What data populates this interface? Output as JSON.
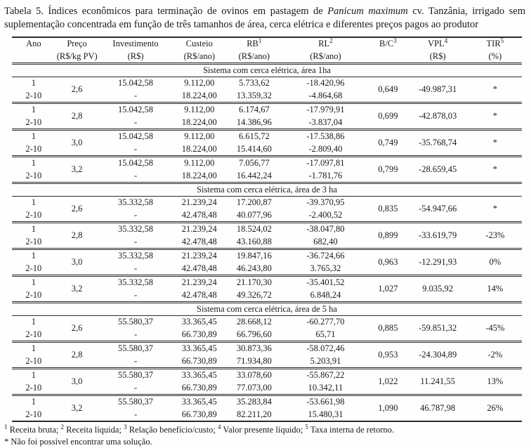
{
  "title": {
    "text_before_italic": "Tabela 5. Índices econômicos para terminação de ovinos em pastagem de ",
    "italic": "Panicum maximum",
    "text_after_italic": " cv. Tanzânia, irrigado sem suplementação concentrada em função de três tamanhos de área, cerca elétrica e diferentes preços pagos ao produtor"
  },
  "table": {
    "columns": [
      {
        "key": "ano",
        "label": "Ano",
        "sup": "",
        "unit": ""
      },
      {
        "key": "preco",
        "label": "Preço",
        "sup": "",
        "unit": "(R$/kg PV)"
      },
      {
        "key": "investimento",
        "label": "Investimento",
        "sup": "",
        "unit": "(R$)"
      },
      {
        "key": "custeio",
        "label": "Custeio",
        "sup": "",
        "unit": "(R$/ano)"
      },
      {
        "key": "rb",
        "label": "RB",
        "sup": "1",
        "unit": "(R$/ano)"
      },
      {
        "key": "rl",
        "label": "RL",
        "sup": "2",
        "unit": "(R$/ano)"
      },
      {
        "key": "bc",
        "label": "B/C",
        "sup": "3",
        "unit": ""
      },
      {
        "key": "vpl",
        "label": "VPL",
        "sup": "4",
        "unit": "(R$)"
      },
      {
        "key": "tir",
        "label": "TIR",
        "sup": "5",
        "unit": "(%)"
      }
    ],
    "col_widths": [
      "8.5%",
      "8.5%",
      "14.5%",
      "10.5%",
      "11%",
      "17%",
      "7.5%",
      "12%",
      "10.5%"
    ],
    "sections": [
      {
        "header": "Sistema com cerca elétrica, área 1ha",
        "rows": [
          {
            "ano": [
              "1",
              "2-10"
            ],
            "preco": "2,6",
            "investimento": [
              "15.042,58",
              "-"
            ],
            "custeio": [
              "9.112,00",
              "18.224,00"
            ],
            "rb": [
              "5.733,62",
              "13.359,32"
            ],
            "rl": [
              "-18.420,96",
              "-4.864,68"
            ],
            "bc": "0,649",
            "vpl": "-49.987,31",
            "tir": "*"
          },
          {
            "ano": [
              "1",
              "2-10"
            ],
            "preco": "2,8",
            "investimento": [
              "15.042,58",
              "-"
            ],
            "custeio": [
              "9.112,00",
              "18.224,00"
            ],
            "rb": [
              "6.174,67",
              "14.386,96"
            ],
            "rl": [
              "-17.979,91",
              "-3.837,04"
            ],
            "bc": "0,699",
            "vpl": "-42.878,03",
            "tir": "*"
          },
          {
            "ano": [
              "1",
              "2-10"
            ],
            "preco": "3,0",
            "investimento": [
              "15.042,58",
              "-"
            ],
            "custeio": [
              "9.112,00",
              "18.224,00"
            ],
            "rb": [
              "6.615,72",
              "15.414,60"
            ],
            "rl": [
              "-17.538,86",
              "-2.809,40"
            ],
            "bc": "0,749",
            "vpl": "-35.768,74",
            "tir": "*"
          },
          {
            "ano": [
              "1",
              "2-10"
            ],
            "preco": "3,2",
            "investimento": [
              "15.042,58",
              "-"
            ],
            "custeio": [
              "9.112,00",
              "18.224,00"
            ],
            "rb": [
              "7.056,77",
              "16.442,24"
            ],
            "rl": [
              "-17.097,81",
              "-1.781,76"
            ],
            "bc": "0,799",
            "vpl": "-28.659,45",
            "tir": "*"
          }
        ]
      },
      {
        "header": "Sistema com cerca elétrica, área de 3 ha",
        "rows": [
          {
            "ano": [
              "1",
              "2-10"
            ],
            "preco": "2,6",
            "investimento": [
              "35.332,58",
              "-"
            ],
            "custeio": [
              "21.239,24",
              "42.478,48"
            ],
            "rb": [
              "17.200,87",
              "40.077,96"
            ],
            "rl": [
              "-39.370,95",
              "-2.400,52"
            ],
            "bc": "0,835",
            "vpl": "-54.947,66",
            "tir": "*"
          },
          {
            "ano": [
              "1",
              "2-10"
            ],
            "preco": "2,8",
            "investimento": [
              "35.332,58",
              "-"
            ],
            "custeio": [
              "21.239,24",
              "42.478,48"
            ],
            "rb": [
              "18.524,02",
              "43.160,88"
            ],
            "rl": [
              "-38.047,80",
              "682,40"
            ],
            "bc": "0,899",
            "vpl": "-33.619,79",
            "tir": "-23%"
          },
          {
            "ano": [
              "1",
              "2-10"
            ],
            "preco": "3,0",
            "investimento": [
              "35.332,58",
              "-"
            ],
            "custeio": [
              "21.239,24",
              "42.478,48"
            ],
            "rb": [
              "19.847,16",
              "46.243,80"
            ],
            "rl": [
              "-36.724,66",
              "3.765,32"
            ],
            "bc": "0,963",
            "vpl": "-12.291,93",
            "tir": "0%"
          },
          {
            "ano": [
              "1",
              "2-10"
            ],
            "preco": "3,2",
            "investimento": [
              "35.332,58",
              "-"
            ],
            "custeio": [
              "21.239,24",
              "42.478,48"
            ],
            "rb": [
              "21.170,30",
              "49.326,72"
            ],
            "rl": [
              "-35.401,52",
              "6.848,24"
            ],
            "bc": "1,027",
            "vpl": "9.035,92",
            "tir": "14%"
          }
        ]
      },
      {
        "header": "Sistema com cerca elétrica, área de 5 ha",
        "rows": [
          {
            "ano": [
              "1",
              "2-10"
            ],
            "preco": "2,6",
            "investimento": [
              "55.580,37",
              "-"
            ],
            "custeio": [
              "33.365,45",
              "66.730,89"
            ],
            "rb": [
              "28.668,12",
              "66.796,60"
            ],
            "rl": [
              "-60.277,70",
              "65,71"
            ],
            "bc": "0,885",
            "vpl": "-59.851,32",
            "tir": "-45%"
          },
          {
            "ano": [
              "1",
              "2-10"
            ],
            "preco": "2,8",
            "investimento": [
              "55.580,37",
              "-"
            ],
            "custeio": [
              "33.365,45",
              "66.730,89"
            ],
            "rb": [
              "30.873,36",
              "71.934,80"
            ],
            "rl": [
              "-58.072,46",
              "5.203,91"
            ],
            "bc": "0,953",
            "vpl": "-24.304,89",
            "tir": "-2%"
          },
          {
            "ano": [
              "1",
              "2-10"
            ],
            "preco": "3,0",
            "investimento": [
              "55.580,37",
              "-"
            ],
            "custeio": [
              "33.365,45",
              "66.730,89"
            ],
            "rb": [
              "33.078,60",
              "77.073,00"
            ],
            "rl": [
              "-55.867,22",
              "10.342,11"
            ],
            "bc": "1,022",
            "vpl": "11.241,55",
            "tir": "13%"
          },
          {
            "ano": [
              "1",
              "2-10"
            ],
            "preco": "3,2",
            "investimento": [
              "55.580,37",
              "-"
            ],
            "custeio": [
              "33.365,45",
              "66.730,89"
            ],
            "rb": [
              "35.283,84",
              "82.211,20"
            ],
            "rl": [
              "-53.661,98",
              "15.480,31"
            ],
            "bc": "1,090",
            "vpl": "46.787,98",
            "tir": "26%"
          }
        ]
      }
    ]
  },
  "footnotes": {
    "definitions": [
      {
        "sup": "1",
        "text": " Receita bruta; "
      },
      {
        "sup": "2",
        "text": " Receita líquida; "
      },
      {
        "sup": "3",
        "text": " Relação benefício/custo; "
      },
      {
        "sup": "4",
        "text": " Valor presente líquido; "
      },
      {
        "sup": "5",
        "text": " Taxa interna de retorno."
      }
    ],
    "no_solution": "* Não foi possível encontrar uma solução."
  }
}
